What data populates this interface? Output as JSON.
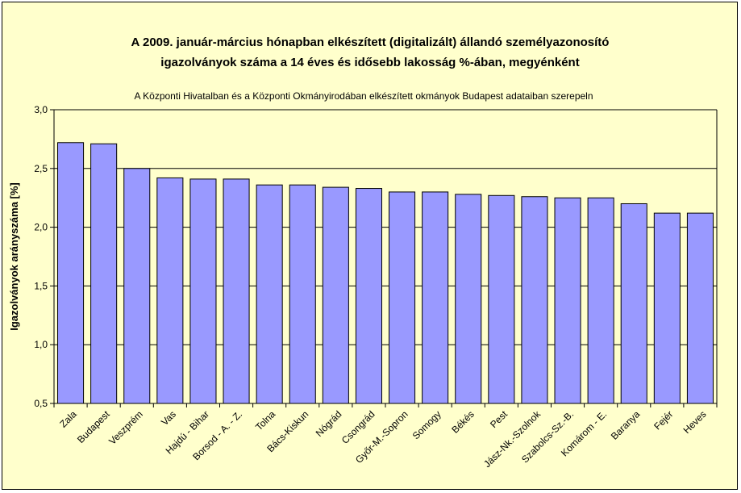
{
  "chart_data": {
    "type": "bar",
    "title_lines": [
      "A 2009. január-március hónapban elkészített (digitalizált) állandó személyazonosító",
      "igazolványok száma a 14 éves és idősebb lakosság %-ában, megyénként"
    ],
    "subtitle": "A  Központi Hivatalban és a Központi Okmányirodában elkészített  okmányok Budapest adataiban szerepeln",
    "ylabel": "Igazolványok arányszáma [%]",
    "xlabel": "",
    "ylim": [
      0.5,
      3.0
    ],
    "yticks": [
      "0,5",
      "1,0",
      "1,5",
      "2,0",
      "2,5",
      "3,0"
    ],
    "ytick_values": [
      0.5,
      1.0,
      1.5,
      2.0,
      2.5,
      3.0
    ],
    "grid": true,
    "categories": [
      "Zala",
      "Budapest",
      "Veszprém",
      "Vas",
      "Hajdú - Bihar",
      "Borsod - A. - Z.",
      "Tolna",
      "Bács-Kiskun",
      "Nógrád",
      "Csongrád",
      "Győr-M.-Sopron",
      "Somogy",
      "Békés",
      "Pest",
      "Jász-Nk.-Szolnok",
      "Szabolcs-Sz.-B.",
      "Komárom - E.",
      "Baranya",
      "Fejér",
      "Heves"
    ],
    "values": [
      2.72,
      2.71,
      2.5,
      2.42,
      2.41,
      2.41,
      2.36,
      2.36,
      2.34,
      2.33,
      2.3,
      2.3,
      2.28,
      2.27,
      2.26,
      2.25,
      2.25,
      2.2,
      2.12,
      2.12
    ],
    "colors": {
      "bar": "#9999ff",
      "plot_bg": "#ffffcc",
      "page_bg": "#ffffcc"
    }
  }
}
